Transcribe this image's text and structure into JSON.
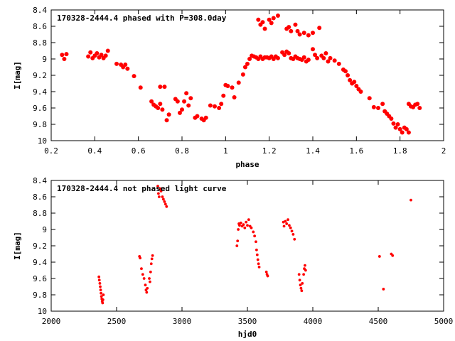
{
  "chart_data": [
    {
      "type": "scatter",
      "title": "170328-2444.4 phased with P=308.0day",
      "xlabel": "phase",
      "ylabel": "I[mag]",
      "xlim": [
        0.2,
        2.0
      ],
      "ylim": [
        10.0,
        8.4
      ],
      "y_inverted": true,
      "x_ticks": [
        "0.2",
        "0.4",
        "0.6",
        "0.8",
        "1",
        "1.2",
        "1.4",
        "1.6",
        "1.8",
        "2"
      ],
      "y_ticks": [
        "8.4",
        "8.6",
        "8.8",
        "9",
        "9.2",
        "9.4",
        "9.6",
        "9.8",
        "10"
      ],
      "grid": false,
      "marker_color": "#ff0000",
      "series": [
        {
          "points": [
            [
              0.25,
              8.95
            ],
            [
              0.26,
              9.0
            ],
            [
              0.27,
              8.94
            ],
            [
              0.37,
              8.97
            ],
            [
              0.38,
              8.92
            ],
            [
              0.39,
              8.99
            ],
            [
              0.4,
              8.96
            ],
            [
              0.41,
              8.93
            ],
            [
              0.42,
              8.98
            ],
            [
              0.43,
              8.95
            ],
            [
              0.44,
              8.99
            ],
            [
              0.45,
              8.96
            ],
            [
              0.46,
              8.9
            ],
            [
              0.5,
              9.06
            ],
            [
              0.52,
              9.07
            ],
            [
              0.53,
              9.1
            ],
            [
              0.54,
              9.07
            ],
            [
              0.55,
              9.12
            ],
            [
              0.58,
              9.21
            ],
            [
              0.61,
              9.35
            ],
            [
              0.66,
              9.52
            ],
            [
              0.67,
              9.56
            ],
            [
              0.68,
              9.58
            ],
            [
              0.69,
              9.6
            ],
            [
              0.7,
              9.55
            ],
            [
              0.71,
              9.62
            ],
            [
              0.7,
              9.34
            ],
            [
              0.72,
              9.34
            ],
            [
              0.73,
              9.75
            ],
            [
              0.74,
              9.68
            ],
            [
              0.77,
              9.49
            ],
            [
              0.78,
              9.52
            ],
            [
              0.79,
              9.66
            ],
            [
              0.8,
              9.62
            ],
            [
              0.81,
              9.52
            ],
            [
              0.82,
              9.42
            ],
            [
              0.83,
              9.57
            ],
            [
              0.84,
              9.48
            ],
            [
              0.86,
              9.72
            ],
            [
              0.87,
              9.7
            ],
            [
              0.89,
              9.73
            ],
            [
              0.9,
              9.75
            ],
            [
              0.91,
              9.72
            ],
            [
              0.93,
              9.57
            ],
            [
              0.95,
              9.58
            ],
            [
              0.97,
              9.6
            ],
            [
              0.98,
              9.55
            ],
            [
              0.99,
              9.45
            ],
            [
              1.0,
              9.32
            ],
            [
              1.01,
              9.33
            ],
            [
              1.03,
              9.35
            ],
            [
              1.04,
              9.47
            ],
            [
              1.06,
              9.29
            ],
            [
              1.08,
              9.19
            ],
            [
              1.09,
              9.1
            ],
            [
              1.1,
              9.06
            ],
            [
              1.11,
              9.0
            ],
            [
              1.12,
              8.96
            ],
            [
              1.13,
              8.97
            ],
            [
              1.14,
              8.98
            ],
            [
              1.15,
              9.0
            ],
            [
              1.16,
              8.97
            ],
            [
              1.17,
              9.0
            ],
            [
              1.18,
              8.98
            ],
            [
              1.19,
              8.98
            ],
            [
              1.2,
              8.99
            ],
            [
              1.21,
              8.97
            ],
            [
              1.22,
              9.0
            ],
            [
              1.23,
              8.97
            ],
            [
              1.24,
              8.99
            ],
            [
              1.15,
              8.52
            ],
            [
              1.16,
              8.58
            ],
            [
              1.17,
              8.55
            ],
            [
              1.18,
              8.63
            ],
            [
              1.2,
              8.52
            ],
            [
              1.21,
              8.56
            ],
            [
              1.22,
              8.5
            ],
            [
              1.24,
              8.47
            ],
            [
              1.26,
              8.92
            ],
            [
              1.27,
              8.95
            ],
            [
              1.28,
              8.91
            ],
            [
              1.29,
              8.93
            ],
            [
              1.3,
              8.99
            ],
            [
              1.31,
              9.0
            ],
            [
              1.32,
              8.97
            ],
            [
              1.33,
              8.99
            ],
            [
              1.34,
              9.0
            ],
            [
              1.35,
              9.01
            ],
            [
              1.36,
              8.98
            ],
            [
              1.37,
              9.03
            ],
            [
              1.38,
              9.01
            ],
            [
              1.28,
              8.63
            ],
            [
              1.29,
              8.61
            ],
            [
              1.3,
              8.66
            ],
            [
              1.32,
              8.58
            ],
            [
              1.33,
              8.66
            ],
            [
              1.34,
              8.7
            ],
            [
              1.36,
              8.68
            ],
            [
              1.38,
              8.71
            ],
            [
              1.4,
              8.68
            ],
            [
              1.4,
              8.88
            ],
            [
              1.41,
              8.95
            ],
            [
              1.42,
              8.99
            ],
            [
              1.43,
              8.62
            ],
            [
              1.44,
              8.96
            ],
            [
              1.45,
              8.99
            ],
            [
              1.46,
              8.93
            ],
            [
              1.47,
              9.03
            ],
            [
              1.48,
              8.99
            ],
            [
              1.5,
              9.02
            ],
            [
              1.52,
              9.06
            ],
            [
              1.54,
              9.13
            ],
            [
              1.55,
              9.15
            ],
            [
              1.56,
              9.2
            ],
            [
              1.57,
              9.26
            ],
            [
              1.58,
              9.3
            ],
            [
              1.59,
              9.28
            ],
            [
              1.6,
              9.33
            ],
            [
              1.61,
              9.37
            ],
            [
              1.62,
              9.4
            ],
            [
              1.66,
              9.48
            ],
            [
              1.68,
              9.59
            ],
            [
              1.7,
              9.6
            ],
            [
              1.72,
              9.55
            ],
            [
              1.73,
              9.64
            ],
            [
              1.74,
              9.67
            ],
            [
              1.75,
              9.7
            ],
            [
              1.76,
              9.73
            ],
            [
              1.77,
              9.79
            ],
            [
              1.78,
              9.84
            ],
            [
              1.79,
              9.8
            ],
            [
              1.8,
              9.86
            ],
            [
              1.81,
              9.9
            ],
            [
              1.82,
              9.84
            ],
            [
              1.83,
              9.86
            ],
            [
              1.84,
              9.9
            ],
            [
              1.84,
              9.55
            ],
            [
              1.85,
              9.58
            ],
            [
              1.86,
              9.59
            ],
            [
              1.87,
              9.56
            ],
            [
              1.88,
              9.55
            ],
            [
              1.89,
              9.6
            ]
          ]
        }
      ]
    },
    {
      "type": "scatter",
      "title": "170328-2444.4 not phased light curve",
      "xlabel": "hjd0",
      "ylabel": "I[mag]",
      "xlim": [
        2000,
        5000
      ],
      "ylim": [
        10.0,
        8.4
      ],
      "y_inverted": true,
      "x_ticks": [
        "2000",
        "2500",
        "3000",
        "3500",
        "4000",
        "4500",
        "5000"
      ],
      "y_ticks": [
        "8.4",
        "8.6",
        "8.8",
        "9",
        "9.2",
        "9.4",
        "9.6",
        "9.8",
        "10"
      ],
      "grid": false,
      "marker_color": "#ff0000",
      "series": [
        {
          "points": [
            [
              2365,
              9.58
            ],
            [
              2368,
              9.62
            ],
            [
              2372,
              9.66
            ],
            [
              2375,
              9.7
            ],
            [
              2378,
              9.74
            ],
            [
              2381,
              9.78
            ],
            [
              2384,
              9.82
            ],
            [
              2387,
              9.85
            ],
            [
              2390,
              9.88
            ],
            [
              2393,
              9.9
            ],
            [
              2396,
              9.86
            ],
            [
              2399,
              9.8
            ],
            [
              2675,
              9.33
            ],
            [
              2680,
              9.35
            ],
            [
              2690,
              9.48
            ],
            [
              2700,
              9.55
            ],
            [
              2710,
              9.6
            ],
            [
              2720,
              9.68
            ],
            [
              2725,
              9.74
            ],
            [
              2730,
              9.77
            ],
            [
              2735,
              9.72
            ],
            [
              2750,
              9.6
            ],
            [
              2755,
              9.64
            ],
            [
              2760,
              9.52
            ],
            [
              2765,
              9.42
            ],
            [
              2770,
              9.36
            ],
            [
              2775,
              9.32
            ],
            [
              2815,
              8.47
            ],
            [
              2820,
              8.56
            ],
            [
              2825,
              8.6
            ],
            [
              2832,
              8.5
            ],
            [
              2840,
              8.53
            ],
            [
              2850,
              8.6
            ],
            [
              2858,
              8.63
            ],
            [
              2866,
              8.66
            ],
            [
              2874,
              8.69
            ],
            [
              2882,
              8.72
            ],
            [
              3420,
              9.2
            ],
            [
              3425,
              9.14
            ],
            [
              3430,
              9.0
            ],
            [
              3435,
              8.93
            ],
            [
              3440,
              8.95
            ],
            [
              3450,
              8.92
            ],
            [
              3460,
              8.96
            ],
            [
              3470,
              8.94
            ],
            [
              3480,
              8.98
            ],
            [
              3490,
              8.91
            ],
            [
              3500,
              8.95
            ],
            [
              3510,
              8.88
            ],
            [
              3520,
              8.96
            ],
            [
              3530,
              8.98
            ],
            [
              3545,
              9.03
            ],
            [
              3555,
              9.08
            ],
            [
              3565,
              9.15
            ],
            [
              3570,
              9.25
            ],
            [
              3575,
              9.31
            ],
            [
              3580,
              9.37
            ],
            [
              3585,
              9.42
            ],
            [
              3590,
              9.46
            ],
            [
              3645,
              9.52
            ],
            [
              3650,
              9.55
            ],
            [
              3655,
              9.57
            ],
            [
              3775,
              8.91
            ],
            [
              3780,
              8.96
            ],
            [
              3790,
              8.9
            ],
            [
              3800,
              8.93
            ],
            [
              3810,
              8.88
            ],
            [
              3820,
              8.95
            ],
            [
              3830,
              8.98
            ],
            [
              3840,
              9.02
            ],
            [
              3850,
              9.06
            ],
            [
              3860,
              9.12
            ],
            [
              3895,
              9.55
            ],
            [
              3900,
              9.62
            ],
            [
              3905,
              9.68
            ],
            [
              3910,
              9.72
            ],
            [
              3915,
              9.75
            ],
            [
              3920,
              9.66
            ],
            [
              3930,
              9.55
            ],
            [
              3935,
              9.48
            ],
            [
              3940,
              9.44
            ],
            [
              3945,
              9.5
            ],
            [
              4510,
              9.33
            ],
            [
              4540,
              9.73
            ],
            [
              4600,
              9.3
            ],
            [
              4610,
              9.32
            ],
            [
              4750,
              8.64
            ]
          ]
        }
      ]
    }
  ]
}
